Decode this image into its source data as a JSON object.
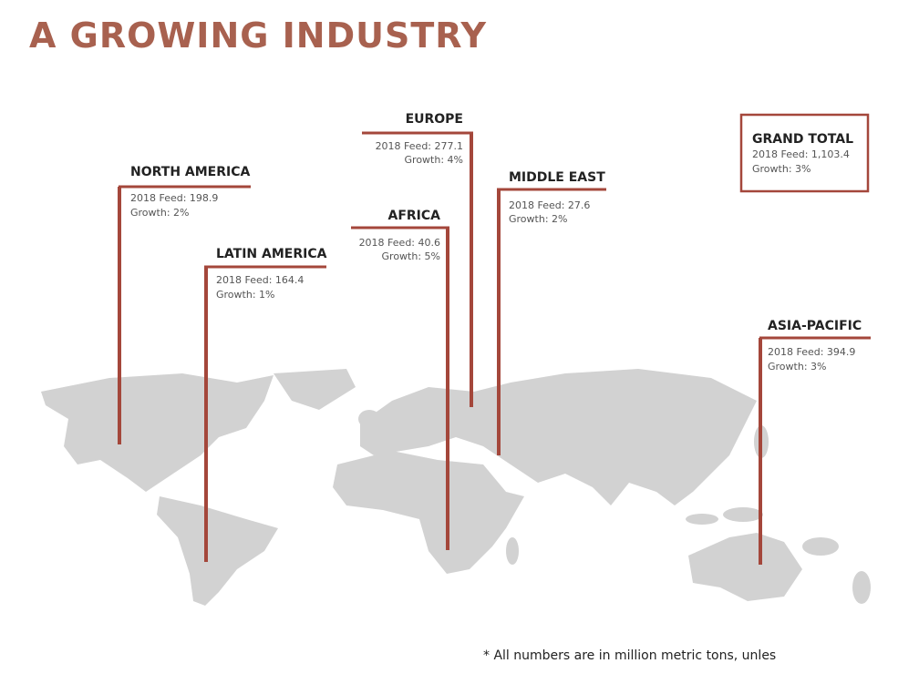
{
  "header": {
    "title": "A GROWING INDUSTRY"
  },
  "regions": [
    {
      "name": "NORTH AMERICA",
      "feed": "2018 Feed: 198.9",
      "growth": "Growth: 2%"
    },
    {
      "name": "LATIN AMERICA",
      "feed": "2018 Feed: 164.4",
      "growth": "Growth: 1%"
    },
    {
      "name": "EUROPE",
      "feed": "2018 Feed: 277.1",
      "growth": "Growth: 4%"
    },
    {
      "name": "AFRICA",
      "feed": "2018 Feed: 40.6",
      "growth": "Growth: 5%"
    },
    {
      "name": "MIDDLE EAST",
      "feed": "2018 Feed: 27.6",
      "growth": "Growth: 2%"
    },
    {
      "name": "ASIA-PACIFIC",
      "feed": "2018 Feed: 394.9",
      "growth": "Growth: 3%"
    }
  ],
  "grand_total": {
    "name": "GRAND TOTAL",
    "feed": "2018 Feed: 1,103.4",
    "growth": "Growth: 3%"
  },
  "footnote": "* All numbers are in million metric tons, unles"
}
